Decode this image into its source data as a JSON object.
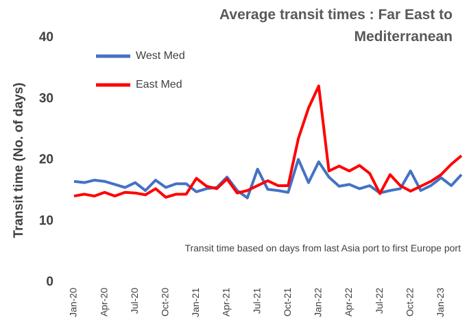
{
  "chart_data": {
    "type": "line",
    "title": "Average transit times : Far East to Mediterranean",
    "y_label": "Transit time (No. of days)",
    "annotation": "Transit time based on days from last Asia port to first Europe port",
    "categories": [
      "Jan-20",
      null,
      null,
      "Apr-20",
      null,
      null,
      "Jul-20",
      null,
      null,
      "Oct-20",
      null,
      null,
      "Jan-21",
      null,
      null,
      "Apr-21",
      null,
      null,
      "Jul-21",
      null,
      null,
      "Oct-21",
      null,
      null,
      "Jan-22",
      null,
      null,
      "Apr-22",
      null,
      null,
      "Jul-22",
      null,
      null,
      "Oct-22",
      null,
      null,
      "Jan-23",
      null,
      null
    ],
    "series": [
      {
        "name": "West Med",
        "color": "#4472c4",
        "values": [
          16.5,
          16.3,
          16.7,
          16.5,
          16.0,
          15.5,
          16.3,
          15.0,
          16.7,
          15.5,
          16.1,
          16.1,
          14.8,
          15.3,
          15.5,
          17.2,
          15.0,
          13.8,
          18.5,
          15.2,
          15.0,
          14.7,
          20.1,
          16.3,
          19.7,
          17.2,
          15.7,
          16.0,
          15.3,
          15.8,
          14.6,
          15.0,
          15.3,
          18.2,
          15.0,
          15.8,
          17.1,
          15.8,
          17.6
        ]
      },
      {
        "name": "East Med",
        "color": "#ff0000",
        "values": [
          14.1,
          14.4,
          14.1,
          14.7,
          14.1,
          14.7,
          14.6,
          14.3,
          15.3,
          13.9,
          14.4,
          14.4,
          17.0,
          15.7,
          15.3,
          16.9,
          14.6,
          15.0,
          15.8,
          16.6,
          15.8,
          15.8,
          23.5,
          28.5,
          32.1,
          18.2,
          19.0,
          18.2,
          19.1,
          17.8,
          14.5,
          17.6,
          15.8,
          14.9,
          15.7,
          16.5,
          17.6,
          19.3,
          20.7
        ]
      }
    ],
    "ylim": [
      0,
      40
    ],
    "yticks": [
      0,
      10,
      20,
      30,
      40
    ],
    "grid": false,
    "legend": "top-left"
  }
}
